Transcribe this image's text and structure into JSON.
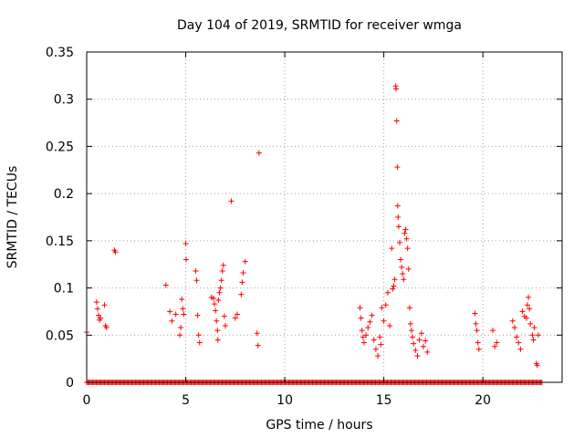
{
  "chart_data": {
    "type": "scatter",
    "title": "Day 104 of 2019, SRMTID for receiver wmga",
    "xlabel": "GPS time / hours",
    "ylabel": "SRMTID / TECUs",
    "xlim": [
      0,
      24
    ],
    "ylim": [
      0,
      0.35
    ],
    "xticks": [
      0,
      5,
      10,
      15,
      20
    ],
    "xtick_labels": [
      "0",
      "5",
      "10",
      "15",
      "20"
    ],
    "yticks": [
      0,
      0.05,
      0.1,
      0.15,
      0.2,
      0.25,
      0.3,
      0.35
    ],
    "ytick_labels": [
      "0",
      "0.05",
      "0.1",
      "0.15",
      "0.2",
      "0.25",
      "0.3",
      "0.35"
    ],
    "grid": true,
    "marker": "+",
    "color": "#ff0000",
    "series": [
      {
        "name": "SRMTID",
        "points": [
          [
            0.0,
            0.053
          ],
          [
            0.5,
            0.085
          ],
          [
            0.55,
            0.078
          ],
          [
            0.6,
            0.071
          ],
          [
            0.65,
            0.066
          ],
          [
            0.7,
            0.068
          ],
          [
            0.9,
            0.082
          ],
          [
            0.95,
            0.06
          ],
          [
            1.0,
            0.058
          ],
          [
            1.4,
            0.14
          ],
          [
            1.45,
            0.138
          ],
          [
            4.0,
            0.103
          ],
          [
            4.2,
            0.075
          ],
          [
            4.3,
            0.065
          ],
          [
            4.5,
            0.072
          ],
          [
            4.7,
            0.05
          ],
          [
            4.75,
            0.058
          ],
          [
            4.8,
            0.088
          ],
          [
            4.85,
            0.078
          ],
          [
            4.9,
            0.072
          ],
          [
            5.0,
            0.147
          ],
          [
            5.02,
            0.13
          ],
          [
            5.5,
            0.118
          ],
          [
            5.55,
            0.108
          ],
          [
            5.6,
            0.071
          ],
          [
            5.65,
            0.05
          ],
          [
            5.7,
            0.042
          ],
          [
            6.3,
            0.09
          ],
          [
            6.4,
            0.089
          ],
          [
            6.45,
            0.083
          ],
          [
            6.5,
            0.076
          ],
          [
            6.55,
            0.065
          ],
          [
            6.6,
            0.055
          ],
          [
            6.62,
            0.045
          ],
          [
            6.65,
            0.087
          ],
          [
            6.7,
            0.095
          ],
          [
            6.75,
            0.1
          ],
          [
            6.8,
            0.108
          ],
          [
            6.85,
            0.118
          ],
          [
            6.9,
            0.124
          ],
          [
            6.95,
            0.07
          ],
          [
            7.0,
            0.06
          ],
          [
            7.3,
            0.192
          ],
          [
            7.5,
            0.068
          ],
          [
            7.6,
            0.072
          ],
          [
            7.8,
            0.093
          ],
          [
            7.85,
            0.106
          ],
          [
            7.9,
            0.116
          ],
          [
            8.0,
            0.128
          ],
          [
            8.6,
            0.052
          ],
          [
            8.65,
            0.039
          ],
          [
            8.7,
            0.243
          ],
          [
            13.8,
            0.079
          ],
          [
            13.85,
            0.068
          ],
          [
            13.9,
            0.055
          ],
          [
            13.95,
            0.048
          ],
          [
            14.0,
            0.042
          ],
          [
            14.1,
            0.05
          ],
          [
            14.2,
            0.058
          ],
          [
            14.3,
            0.064
          ],
          [
            14.4,
            0.071
          ],
          [
            14.5,
            0.045
          ],
          [
            14.6,
            0.035
          ],
          [
            14.7,
            0.028
          ],
          [
            14.8,
            0.048
          ],
          [
            14.85,
            0.04
          ],
          [
            14.9,
            0.079
          ],
          [
            15.0,
            0.065
          ],
          [
            15.1,
            0.082
          ],
          [
            15.2,
            0.095
          ],
          [
            15.3,
            0.06
          ],
          [
            15.4,
            0.142
          ],
          [
            15.45,
            0.099
          ],
          [
            15.5,
            0.102
          ],
          [
            15.55,
            0.109
          ],
          [
            15.6,
            0.314
          ],
          [
            15.62,
            0.311
          ],
          [
            15.65,
            0.277
          ],
          [
            15.68,
            0.228
          ],
          [
            15.7,
            0.187
          ],
          [
            15.72,
            0.175
          ],
          [
            15.75,
            0.165
          ],
          [
            15.8,
            0.148
          ],
          [
            15.85,
            0.13
          ],
          [
            15.9,
            0.122
          ],
          [
            15.95,
            0.115
          ],
          [
            16.0,
            0.109
          ],
          [
            16.05,
            0.158
          ],
          [
            16.1,
            0.162
          ],
          [
            16.15,
            0.152
          ],
          [
            16.2,
            0.142
          ],
          [
            16.25,
            0.12
          ],
          [
            16.3,
            0.079
          ],
          [
            16.35,
            0.062
          ],
          [
            16.4,
            0.055
          ],
          [
            16.45,
            0.048
          ],
          [
            16.5,
            0.041
          ],
          [
            16.6,
            0.034
          ],
          [
            16.7,
            0.028
          ],
          [
            16.8,
            0.045
          ],
          [
            16.9,
            0.052
          ],
          [
            17.0,
            0.038
          ],
          [
            17.1,
            0.044
          ],
          [
            17.2,
            0.032
          ],
          [
            19.6,
            0.073
          ],
          [
            19.65,
            0.062
          ],
          [
            19.7,
            0.055
          ],
          [
            19.75,
            0.042
          ],
          [
            19.8,
            0.035
          ],
          [
            20.5,
            0.055
          ],
          [
            20.6,
            0.038
          ],
          [
            20.7,
            0.042
          ],
          [
            21.5,
            0.065
          ],
          [
            21.6,
            0.058
          ],
          [
            21.7,
            0.048
          ],
          [
            21.8,
            0.042
          ],
          [
            21.9,
            0.035
          ],
          [
            22.0,
            0.075
          ],
          [
            22.1,
            0.07
          ],
          [
            22.2,
            0.068
          ],
          [
            22.25,
            0.082
          ],
          [
            22.3,
            0.09
          ],
          [
            22.35,
            0.078
          ],
          [
            22.4,
            0.062
          ],
          [
            22.5,
            0.05
          ],
          [
            22.55,
            0.045
          ],
          [
            22.6,
            0.058
          ],
          [
            22.7,
            0.02
          ],
          [
            22.75,
            0.018
          ],
          [
            22.8,
            0.05
          ]
        ]
      }
    ],
    "zero_baseline_ranges": [
      [
        0,
        23
      ]
    ]
  }
}
